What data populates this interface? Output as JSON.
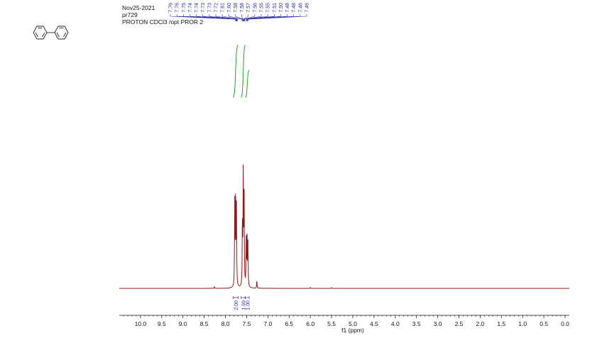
{
  "header": {
    "date": "Nov25-2021",
    "sample": "pr729",
    "experiment": "PROTON CDCl3 /opt PROR 2"
  },
  "structure": {
    "name": "biphenyl"
  },
  "colors": {
    "spectrum": "#8b1a1a",
    "integral": "#2ca02c",
    "label": "#2a2aa8",
    "axis": "#111111"
  },
  "chart_data": {
    "type": "line",
    "title": "",
    "xlabel": "f1 (ppm)",
    "ylabel": "",
    "xlim": [
      10.5,
      -0.1
    ],
    "x_reversed": true,
    "xticks": [
      10.0,
      9.5,
      9.0,
      8.5,
      8.0,
      7.5,
      7.0,
      6.5,
      6.0,
      5.5,
      5.0,
      4.5,
      4.0,
      3.5,
      3.0,
      2.5,
      2.0,
      1.5,
      1.0,
      0.5,
      0.0
    ],
    "xtick_labels": [
      "10.0",
      "9.5",
      "9.0",
      "8.5",
      "8.0",
      "7.5",
      "7.0",
      "6.5",
      "6.0",
      "5.5",
      "5.0",
      "4.5",
      "4.0",
      "3.5",
      "3.0",
      "2.5",
      "2.0",
      "1.5",
      "1.0",
      "0.5",
      "0.0"
    ],
    "peak_labels": [
      "7.76",
      "7.76",
      "7.75",
      "7.74",
      "7.74",
      "7.73",
      "7.73",
      "7.72",
      "7.61",
      "7.60",
      "7.58",
      "7.58",
      "7.57",
      "7.56",
      "7.55",
      "7.55",
      "7.51",
      "7.50",
      "7.48",
      "7.48",
      "7.46",
      "7.46"
    ],
    "peaks": [
      {
        "ppm": 7.78,
        "intensity": 0.55
      },
      {
        "ppm": 7.76,
        "intensity": 0.57
      },
      {
        "ppm": 7.74,
        "intensity": 0.52
      },
      {
        "ppm": 7.6,
        "intensity": 0.4
      },
      {
        "ppm": 7.58,
        "intensity": 0.73
      },
      {
        "ppm": 7.56,
        "intensity": 0.62
      },
      {
        "ppm": 7.51,
        "intensity": 0.3
      },
      {
        "ppm": 7.49,
        "intensity": 0.33
      },
      {
        "ppm": 7.47,
        "intensity": 0.28
      },
      {
        "ppm": 7.26,
        "intensity": 0.05
      },
      {
        "ppm": 8.26,
        "intensity": 0.01
      },
      {
        "ppm": 6.0,
        "intensity": 0.006
      },
      {
        "ppm": 5.5,
        "intensity": 0.005
      }
    ],
    "integrals": [
      {
        "from": 7.82,
        "to": 7.7,
        "value": "2.00",
        "height": 0.75
      },
      {
        "from": 7.63,
        "to": 7.53,
        "value": "1.99",
        "height": 0.75
      },
      {
        "from": 7.53,
        "to": 7.44,
        "value": "1.00",
        "height": 0.39
      }
    ]
  }
}
